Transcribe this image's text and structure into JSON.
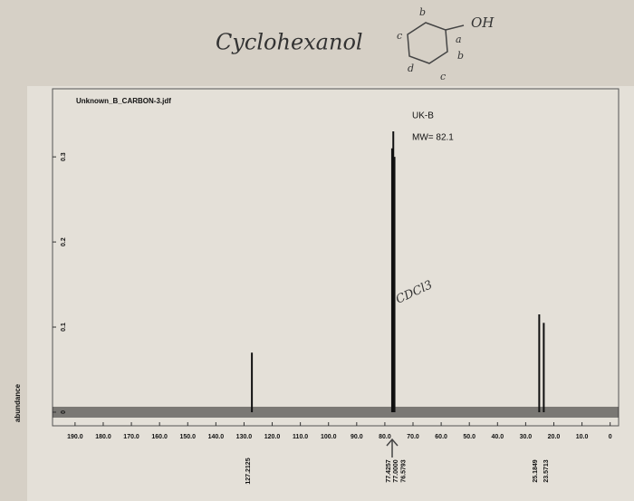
{
  "chart_data": {
    "type": "stem",
    "title": "Unknown_B_CARBON-3.jdf",
    "y_label": "abundance",
    "x": [
      127.2125,
      77.4257,
      77.0,
      76.5793,
      25.1849,
      23.5713
    ],
    "peak_labels": [
      "127.2125",
      "77.4257",
      "77.0000",
      "76.5793",
      "25.1849",
      "23.5713"
    ],
    "values": [
      0.07,
      0.31,
      0.33,
      0.3,
      0.115,
      0.105
    ],
    "color": "#111111",
    "xlim": [
      198,
      -3
    ],
    "xticks": [
      {
        "value": 190,
        "label": "190.0"
      },
      {
        "value": 180,
        "label": "180.0"
      },
      {
        "value": 170,
        "label": "170.0"
      },
      {
        "value": 160,
        "label": "160.0"
      },
      {
        "value": 150,
        "label": "150.0"
      },
      {
        "value": 140,
        "label": "140.0"
      },
      {
        "value": 130,
        "label": "130.0"
      },
      {
        "value": 120,
        "label": "120.0"
      },
      {
        "value": 110,
        "label": "110.0"
      },
      {
        "value": 100,
        "label": "100.0"
      },
      {
        "value": 90,
        "label": "90.0"
      },
      {
        "value": 80,
        "label": "80.0"
      },
      {
        "value": 70,
        "label": "70.0"
      },
      {
        "value": 60,
        "label": "60.0"
      },
      {
        "value": 50,
        "label": "50.0"
      },
      {
        "value": 40,
        "label": "40.0"
      },
      {
        "value": 30,
        "label": "30.0"
      },
      {
        "value": 20,
        "label": "20.0"
      },
      {
        "value": 10,
        "label": "10.0"
      },
      0
    ],
    "ylim": [
      -0.016,
      0.38
    ],
    "yticks": [
      0,
      0.1,
      0.2,
      0.3
    ],
    "annotations": [
      "UK-B",
      "MW= 82.1",
      "Cyclohexanol",
      "OH",
      "CDCl3",
      "a",
      "b",
      "b",
      "c",
      "c",
      "d"
    ]
  }
}
